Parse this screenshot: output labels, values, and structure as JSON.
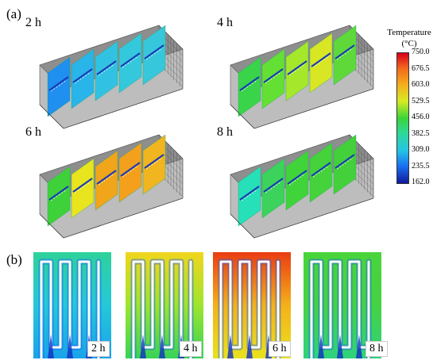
{
  "figure": {
    "panel_a_label": "(a)",
    "panel_b_label": "(b)"
  },
  "panel_a": {
    "views": [
      {
        "time": "2 h",
        "colors": [
          "#1f8ff0",
          "#29b4ea",
          "#31c2e3",
          "#34c8dd",
          "#36c7dc"
        ]
      },
      {
        "time": "4 h",
        "colors": [
          "#39d44a",
          "#63e033",
          "#a5e82b",
          "#d8e623",
          "#5fd93a"
        ]
      },
      {
        "time": "6 h",
        "colors": [
          "#3fd13a",
          "#e8e41e",
          "#f0a51a",
          "#f4a01c",
          "#f1b51f"
        ]
      },
      {
        "time": "8 h",
        "colors": [
          "#25e0b9",
          "#3bd35c",
          "#41d43a",
          "#45d23a",
          "#43d03a"
        ]
      }
    ]
  },
  "colorbar": {
    "title_line1": "Temperature",
    "title_line2": "(°C)",
    "ticks": [
      "750.0",
      "676.5",
      "603.0",
      "529.5",
      "456.0",
      "382.5",
      "309.0",
      "235.5",
      "162.0"
    ]
  },
  "panel_b": {
    "insets": [
      {
        "time": "2 h",
        "top_color": "#2ed29a",
        "mid_color": "#25c8d8",
        "bottom_color": "#1aa3ea"
      },
      {
        "time": "4 h",
        "top_color": "#f2d51e",
        "mid_color": "#9ee52c",
        "bottom_color": "#38d357"
      },
      {
        "time": "6 h",
        "top_color": "#ea3c12",
        "mid_color": "#f4b11a",
        "bottom_color": "#e8e21e"
      },
      {
        "time": "8 h",
        "top_color": "#49d43a",
        "mid_color": "#45d244",
        "bottom_color": "#2fd27d"
      }
    ]
  }
}
